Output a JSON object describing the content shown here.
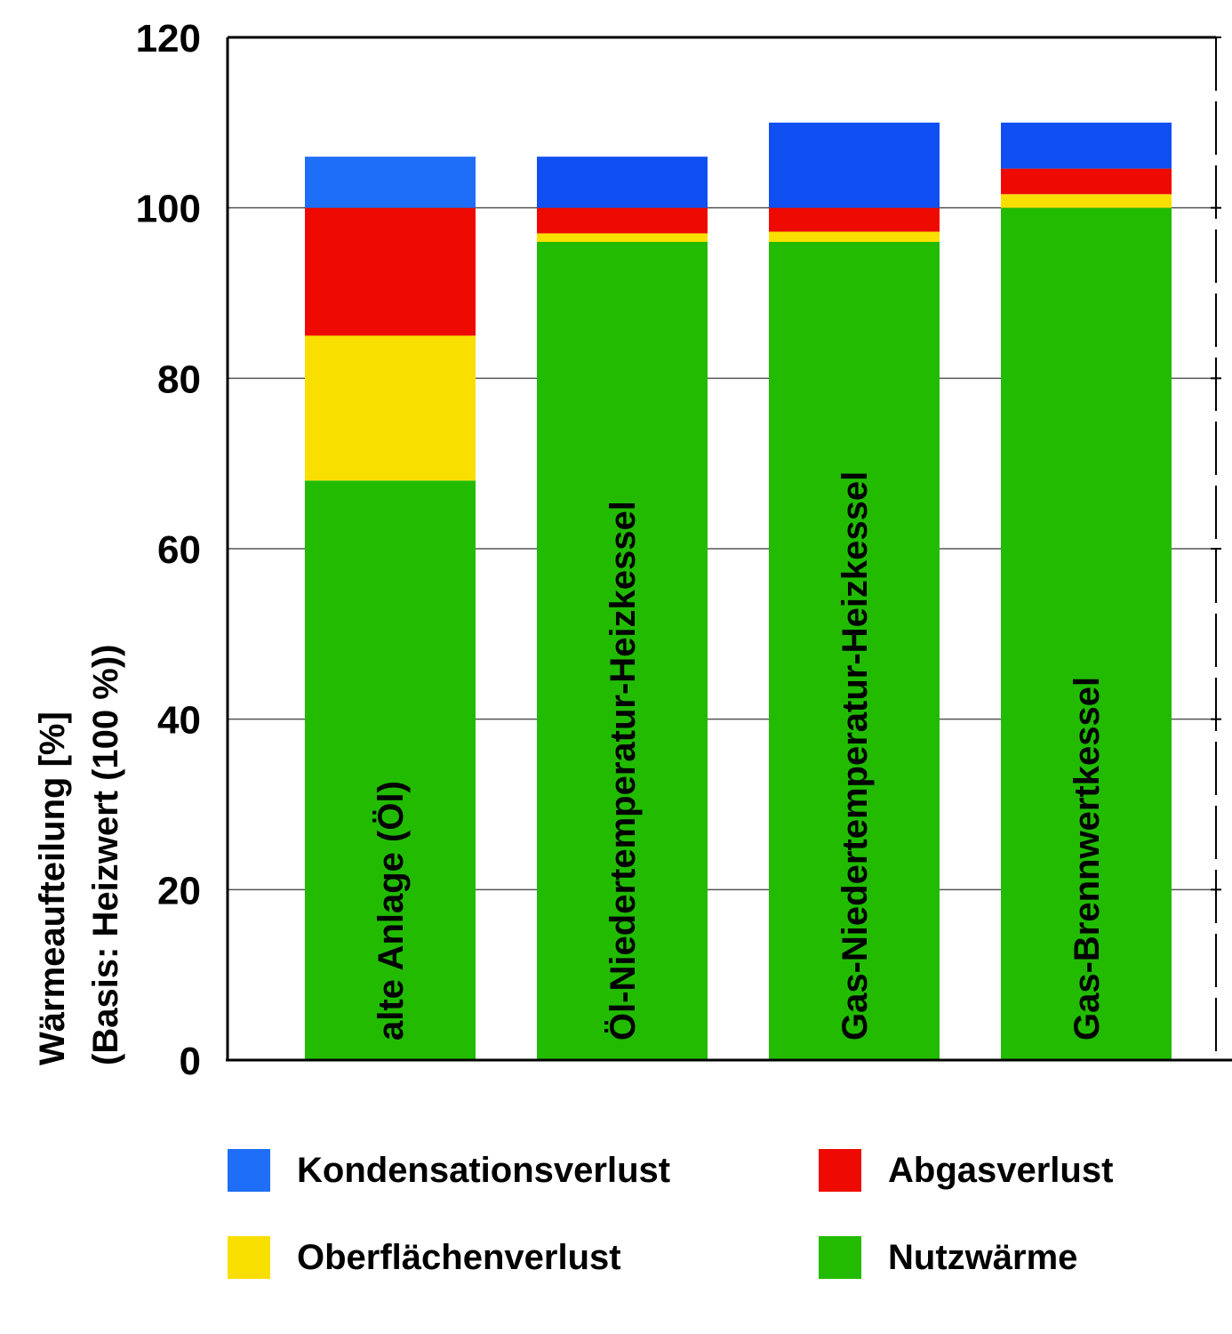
{
  "chart_data": {
    "type": "bar",
    "stacked": true,
    "ylabel_line1": "Wärmeaufteilung [%]",
    "ylabel_line2": "(Basis: Heizwert (100 %))",
    "ylim": [
      0,
      120
    ],
    "yticks": [
      0,
      20,
      40,
      60,
      80,
      100,
      120
    ],
    "grid": true,
    "categories": [
      "alte Anlage (Öl)",
      "Öl-Niedertemperatur-Heizkessel",
      "Gas-Niedertemperatur-Heizkessel",
      "Gas-Brennwertkessel"
    ],
    "series": [
      {
        "name": "Nutzwärme",
        "color": "#22bb00",
        "values": [
          68,
          96,
          96,
          100
        ]
      },
      {
        "name": "Oberflächenverlust",
        "color": "#f9df00",
        "values": [
          17,
          1,
          1.2,
          1.6
        ]
      },
      {
        "name": "Abgasverlust",
        "color": "#ee0a00",
        "values": [
          15,
          3,
          2.8,
          3
        ]
      },
      {
        "name": "Kondensationsverlust",
        "colors": [
          "#1f6ef7",
          "#1050f2",
          "#1050f2",
          "#1050f2"
        ],
        "color": "#1f6ef7",
        "values": [
          6,
          6,
          10,
          5.4
        ]
      }
    ]
  },
  "legend": {
    "position": "bottom",
    "items": [
      {
        "label": "Kondensationsverlust",
        "color": "#1f6ef7"
      },
      {
        "label": "Abgasverlust",
        "color": "#ee0a00"
      },
      {
        "label": "Oberflächenverlust",
        "color": "#f9df00"
      },
      {
        "label": "Nutzwärme",
        "color": "#22bb00"
      }
    ]
  }
}
